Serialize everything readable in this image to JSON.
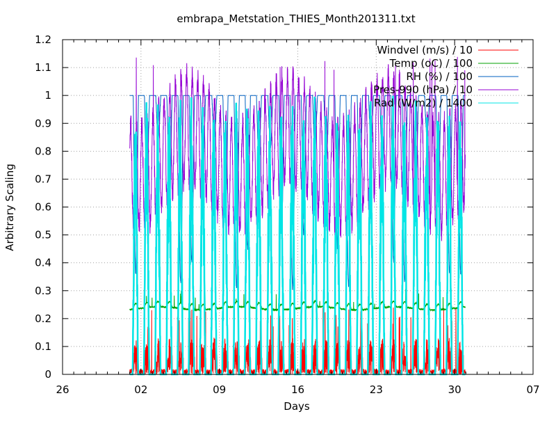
{
  "chart_data": {
    "type": "line",
    "title": "embrapa_Metstation_THIES_Month201311.txt",
    "xlabel": "Days",
    "ylabel": "Arbitrary Scaling",
    "x_ticks": [
      {
        "day": 26,
        "label": "26"
      },
      {
        "day": 2,
        "label": "02"
      },
      {
        "day": 9,
        "label": "09"
      },
      {
        "day": 16,
        "label": "16"
      },
      {
        "day": 23,
        "label": "23"
      },
      {
        "day": 30,
        "label": "30"
      },
      {
        "day": 7,
        "label": "07"
      }
    ],
    "xlim": [
      "2013-10-26",
      "2013-12-07"
    ],
    "ylim": [
      0,
      1.2
    ],
    "y_ticks": [
      "0",
      "0.1",
      "0.2",
      "0.3",
      "0.4",
      "0.5",
      "0.6",
      "0.7",
      "0.8",
      "0.9",
      "1",
      "1.1",
      "1.2"
    ],
    "grid": true,
    "legend_position": "top-right",
    "series": [
      {
        "name": "Windvel (m/s) / 10",
        "color": "#ff0000",
        "start": "2013-11-01",
        "end": "2013-11-30",
        "y_range": [
          0,
          0.24
        ],
        "style": "noisy diurnal"
      },
      {
        "name": "Temp (oC) / 100",
        "color": "#00a000",
        "start": "2013-11-01",
        "end": "2013-11-30",
        "y_range": [
          0.21,
          0.32
        ],
        "style": "diurnal"
      },
      {
        "name": "RH (%) / 100",
        "color": "#0060c0",
        "start": "2013-11-01",
        "end": "2013-11-30",
        "y_range": [
          0.22,
          1.0
        ],
        "style": "diurnal"
      },
      {
        "name": "Pres-990 (hPa) / 10",
        "color": "#9400d3",
        "start": "2013-11-01",
        "end": "2013-11-30",
        "y_range": [
          0.45,
          1.14
        ],
        "style": "semi-diurnal"
      },
      {
        "name": "Rad (W/m2) / 1400",
        "color": "#00e5e5",
        "start": "2013-11-01",
        "end": "2013-11-30",
        "y_range": [
          0,
          1.0
        ],
        "style": "diurnal pulses"
      }
    ]
  }
}
